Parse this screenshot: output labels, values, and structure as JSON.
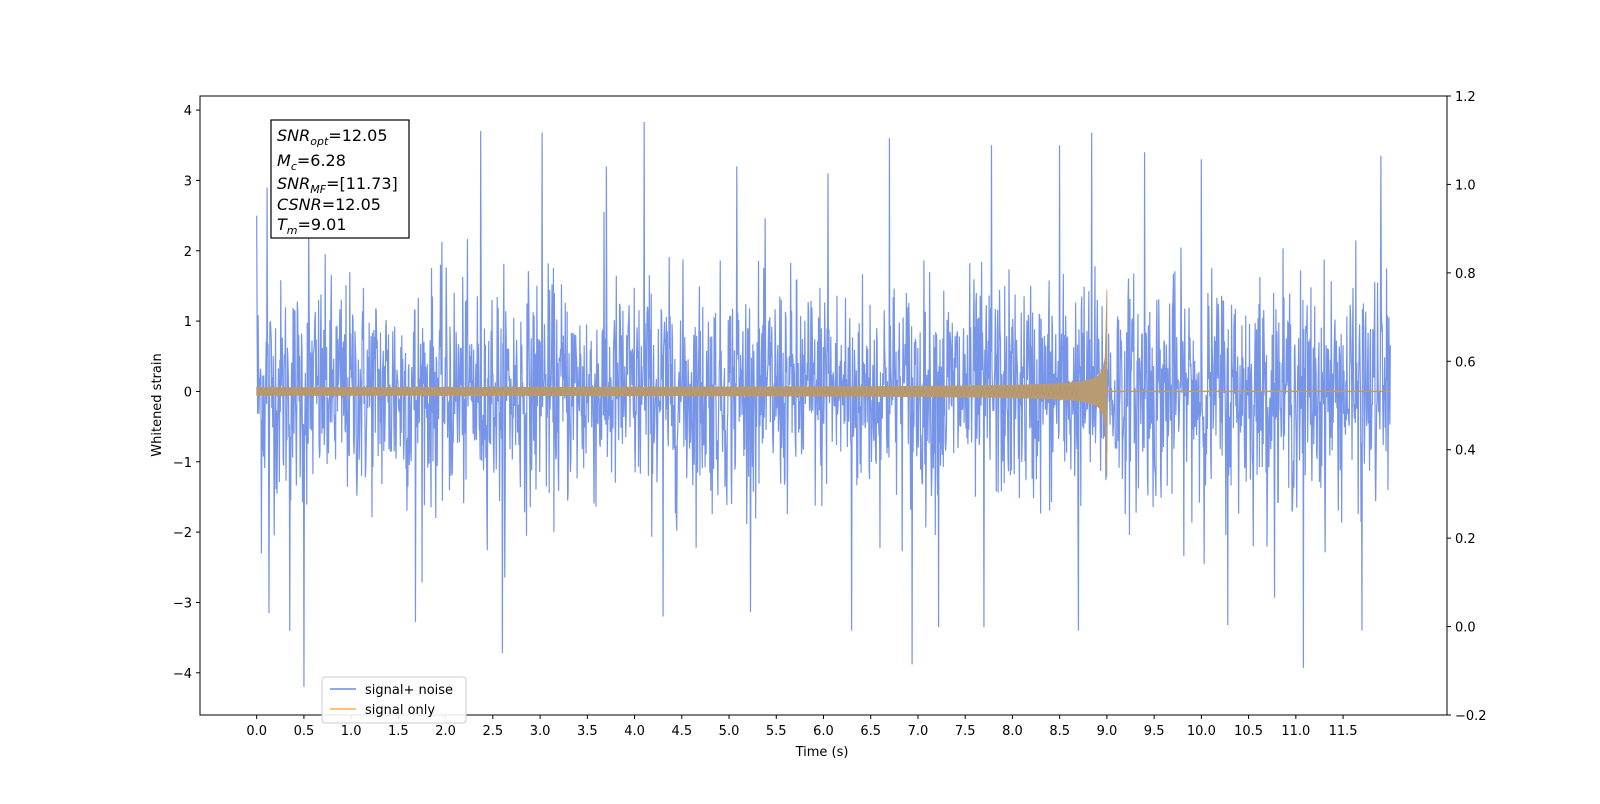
{
  "chart_data": {
    "type": "line",
    "title": "",
    "xlabel": "Time (s)",
    "ylabel": "Whitened strain",
    "xlim": [
      -0.6,
      12.6
    ],
    "ylim": [
      -4.6,
      4.2
    ],
    "ylim_right": [
      -0.2,
      1.2
    ],
    "x_ticks": [
      0.0,
      0.5,
      1.0,
      1.5,
      2.0,
      2.5,
      3.0,
      3.5,
      4.0,
      4.5,
      5.0,
      5.5,
      6.0,
      6.5,
      7.0,
      7.5,
      8.0,
      8.5,
      9.0,
      9.5,
      10.0,
      10.5,
      11.0,
      11.5
    ],
    "x_tick_labels": [
      "0.0",
      "0.5",
      "1.0",
      "1.5",
      "2.0",
      "2.5",
      "3.0",
      "3.5",
      "4.0",
      "4.5",
      "5.0",
      "5.5",
      "6.0",
      "6.5",
      "7.0",
      "7.5",
      "8.0",
      "8.5",
      "9.0",
      "9.5",
      "10.0",
      "10.5",
      "11.0",
      "11.5"
    ],
    "y_ticks": [
      -4,
      -3,
      -2,
      -1,
      0,
      1,
      2,
      3,
      4
    ],
    "y_tick_labels": [
      "−4",
      "−3",
      "−2",
      "−1",
      "0",
      "1",
      "2",
      "3",
      "4"
    ],
    "y_ticks_right": [
      -0.2,
      0.0,
      0.2,
      0.4,
      0.6,
      0.8,
      1.0,
      1.2
    ],
    "y_tick_labels_right": [
      "−0.2",
      "0.0",
      "0.2",
      "0.4",
      "0.6",
      "0.8",
      "1.0",
      "1.2"
    ],
    "grid": false,
    "legend_position": "lower-left",
    "series": [
      {
        "name": "signal+ noise",
        "color": "#6a8be6",
        "kind": "noise",
        "x_range": [
          0.0,
          12.0
        ],
        "typical_range": [
          -1.6,
          1.7
        ],
        "peaks": [
          {
            "x": 0.0,
            "y": 2.5
          },
          {
            "x": 0.05,
            "y": -2.3
          },
          {
            "x": 0.11,
            "y": 2.9
          },
          {
            "x": 0.13,
            "y": -3.15
          },
          {
            "x": 0.5,
            "y": -4.2
          },
          {
            "x": 0.55,
            "y": 2.4
          },
          {
            "x": 0.35,
            "y": -3.4
          },
          {
            "x": 1.68,
            "y": -3.28
          },
          {
            "x": 2.37,
            "y": 3.7
          },
          {
            "x": 2.6,
            "y": -3.72
          },
          {
            "x": 3.02,
            "y": 3.68
          },
          {
            "x": 3.7,
            "y": 3.2
          },
          {
            "x": 4.1,
            "y": 3.83
          },
          {
            "x": 4.3,
            "y": -3.2
          },
          {
            "x": 5.08,
            "y": 3.2
          },
          {
            "x": 6.05,
            "y": 3.1
          },
          {
            "x": 6.3,
            "y": -3.4
          },
          {
            "x": 6.7,
            "y": 3.6
          },
          {
            "x": 6.94,
            "y": -3.88
          },
          {
            "x": 7.22,
            "y": -3.35
          },
          {
            "x": 7.7,
            "y": -3.35
          },
          {
            "x": 7.78,
            "y": 3.5
          },
          {
            "x": 8.5,
            "y": 3.5
          },
          {
            "x": 8.7,
            "y": -3.4
          },
          {
            "x": 8.84,
            "y": 3.68
          },
          {
            "x": 9.4,
            "y": 3.4
          },
          {
            "x": 10.0,
            "y": 3.3
          },
          {
            "x": 10.28,
            "y": -3.32
          },
          {
            "x": 11.08,
            "y": -3.93
          },
          {
            "x": 11.7,
            "y": -3.4
          },
          {
            "x": 11.9,
            "y": 3.35
          }
        ]
      },
      {
        "name": "signal only",
        "color": "#f5b14c",
        "kind": "chirp",
        "x_range": [
          0.0,
          12.0
        ],
        "merger_time": 9.0,
        "peak_amplitude": 1.45,
        "trough_amplitude": -1.22,
        "early_amplitude": 0.04
      }
    ],
    "annotation": [
      {
        "sym": "SNR",
        "sub": "opt",
        "val": "=12.05"
      },
      {
        "sym": "M",
        "sub": "c",
        "val": "=6.28"
      },
      {
        "sym": "SNR",
        "sub": "MF",
        "val": "=[11.73]"
      },
      {
        "sym": "CSNR",
        "sub": "",
        "val": "=12.05"
      },
      {
        "sym": "T",
        "sub": "m",
        "val": "=9.01"
      }
    ],
    "legend": [
      "signal+ noise",
      "signal only"
    ]
  }
}
